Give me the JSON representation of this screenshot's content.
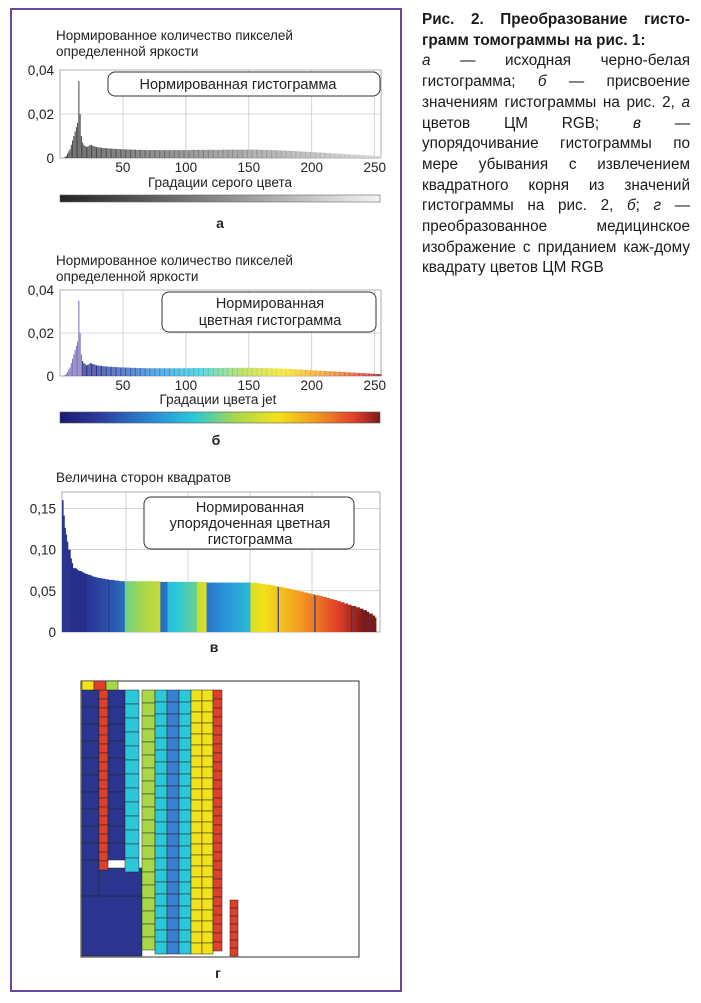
{
  "caption": {
    "title": "Рис. 2. Преобразование гисто-грамм томограммы на рис. 1:",
    "items": [
      {
        "letter": "а",
        "text": " — исходная черно-белая гистограмма; "
      },
      {
        "letter": "б",
        "text": " — присвоение значениям гистограммы на рис. 2, "
      },
      {
        "letter": "а",
        "text": " цветов ЦМ RGB; "
      },
      {
        "letter": "в",
        "text": " — упорядочивание гистограммы по мере убывания с извлечением квадратного корня из значений гистограммы на рис. 2, "
      },
      {
        "letter": "б",
        "text": "; "
      },
      {
        "letter": "г",
        "text": " — преобразованное медицинское изображение с приданием каж-дому квадрату цветов ЦМ RGB"
      }
    ]
  },
  "colors": {
    "frame": "#6a4a9e",
    "navy": "#2b3590",
    "yellow": "#f2e21a",
    "red": "#e0402a"
  },
  "panels": {
    "a": {
      "ylabel_line1": "Нормированное количество пикселей",
      "ylabel_line2": "определенной яркости",
      "legend": "Нормированная гистограмма",
      "xlabel": "Градации серого цвета",
      "letter": "а"
    },
    "b": {
      "ylabel_line1": "Нормированное количество пикселей",
      "ylabel_line2": "определенной яркости",
      "legend_line1": "Нормированная",
      "legend_line2": "цветная гистограмма",
      "xlabel": "Градации цвета jet",
      "letter": "б"
    },
    "v": {
      "ylabel": "Величина сторон квадратов",
      "legend_line1": "Нормированная",
      "legend_line2": "упорядоченная цветная",
      "legend_line3": "гистограмма",
      "letter": "в"
    },
    "g": {
      "letter": "г"
    }
  },
  "chart_data": [
    {
      "type": "bar",
      "x_range": [
        0,
        255
      ],
      "xticks": [
        "50",
        "100",
        "150",
        "200",
        "250"
      ],
      "yticks": [
        "0,04",
        "0,02",
        "0"
      ],
      "ylim": [
        0,
        0.04
      ],
      "peak": {
        "x": 12,
        "y": 0.035
      },
      "values": [
        0.0005,
        0.001,
        0.002,
        0.003,
        0.004,
        0.006,
        0.008,
        0.01,
        0.012,
        0.014,
        0.016,
        0.035,
        0.02,
        0.01,
        0.007,
        0.006,
        0.0055,
        0.005,
        0.0052,
        0.0055,
        0.006,
        0.0058,
        0.0056,
        0.0054,
        0.0052,
        0.005,
        0.0049,
        0.0048,
        0.0048,
        0.0047,
        0.0046,
        0.0045,
        0.0045,
        0.0044,
        0.0044,
        0.0043,
        0.0043,
        0.0043,
        0.0042,
        0.0042,
        0.0042,
        0.0041,
        0.0041,
        0.0041,
        0.004,
        0.004,
        0.004,
        0.004,
        0.0039,
        0.0039,
        0.0039,
        0.0039,
        0.0038,
        0.0038,
        0.0038,
        0.0038,
        0.0038,
        0.0037,
        0.0037,
        0.0037,
        0.0037,
        0.0037,
        0.0037,
        0.0036,
        0.0036,
        0.0036,
        0.0036,
        0.0036,
        0.0036,
        0.0036,
        0.0036,
        0.0036,
        0.0036,
        0.0036,
        0.0036,
        0.0036,
        0.0036,
        0.0036,
        0.0036,
        0.0036,
        0.0036,
        0.0036,
        0.0036,
        0.0036,
        0.0036,
        0.0036,
        0.0036,
        0.0036,
        0.0036,
        0.0036,
        0.0036,
        0.0036,
        0.0036,
        0.0036,
        0.0036,
        0.0036,
        0.0036,
        0.0036,
        0.0036,
        0.0036,
        0.0037,
        0.0037,
        0.0037,
        0.0037,
        0.0037,
        0.0037,
        0.0037,
        0.0037,
        0.0037,
        0.0037,
        0.0037,
        0.0037,
        0.0037,
        0.0037,
        0.0037,
        0.0037,
        0.0037,
        0.0037,
        0.0037,
        0.0037,
        0.0037,
        0.0037,
        0.0037,
        0.0037,
        0.0037,
        0.0038,
        0.0038,
        0.0038,
        0.0038,
        0.0038,
        0.0038,
        0.0038,
        0.0038,
        0.0038,
        0.0038,
        0.0038,
        0.0038,
        0.0038,
        0.0038,
        0.0038,
        0.0038,
        0.0038,
        0.0038,
        0.0038,
        0.0038,
        0.0038,
        0.0038,
        0.0038,
        0.0038,
        0.0038,
        0.0038,
        0.0038,
        0.0038,
        0.0038,
        0.0038,
        0.0037,
        0.0037,
        0.0037,
        0.0037,
        0.0037,
        0.0037,
        0.0037,
        0.0037,
        0.0036,
        0.0036,
        0.0036,
        0.0036,
        0.0036,
        0.0035,
        0.0035,
        0.0035,
        0.0035,
        0.0034,
        0.0034,
        0.0034,
        0.0034,
        0.0033,
        0.0033,
        0.0033,
        0.0033,
        0.0032,
        0.0032,
        0.0032,
        0.0031,
        0.0031,
        0.0031,
        0.003,
        0.003,
        0.003,
        0.0029,
        0.0029,
        0.0029,
        0.0028,
        0.0028,
        0.0028,
        0.0027,
        0.0027,
        0.0027,
        0.0026,
        0.0026,
        0.0026,
        0.0025,
        0.0025,
        0.0025,
        0.0024,
        0.0024,
        0.0024,
        0.0023,
        0.0023,
        0.0023,
        0.0022,
        0.0022,
        0.0022,
        0.0021,
        0.0021,
        0.0021,
        0.002,
        0.002,
        0.002,
        0.0019,
        0.0019,
        0.0019,
        0.0018,
        0.0018,
        0.0018,
        0.0017,
        0.0017,
        0.0017,
        0.0016,
        0.0016,
        0.0016,
        0.0015,
        0.0015,
        0.0015,
        0.0014,
        0.0014,
        0.0014,
        0.0013,
        0.0013,
        0.0013,
        0.0012,
        0.0012,
        0.0012,
        0.0011,
        0.0011,
        0.0011,
        0.001,
        0.001,
        0.001,
        0.0009,
        0.0009,
        0.0009,
        0.0008,
        0.0008,
        0.0008,
        0.0007,
        0.0007,
        0.0007,
        0.0006,
        0.0006,
        0.0005,
        0.0005,
        0.0004,
        0.0004,
        0.0003
      ]
    },
    {
      "type": "bar",
      "colormap": "jet",
      "xticks": [
        "50",
        "100",
        "150",
        "200",
        "250"
      ],
      "yticks": [
        "0,04",
        "0,02",
        "0"
      ],
      "ylim": [
        0,
        0.04
      ],
      "note": "same values as panel a, coloured by jet colormap"
    },
    {
      "type": "bar",
      "colormap": "jet-sorted",
      "yticks": [
        "0,15",
        "0,10",
        "0,05",
        "0"
      ],
      "ylim": [
        0,
        0.17
      ]
    }
  ]
}
